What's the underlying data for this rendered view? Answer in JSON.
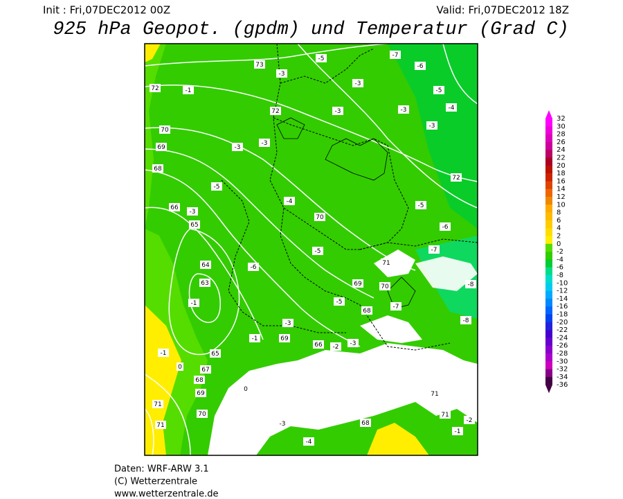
{
  "header": {
    "init": "Init : Fri,07DEC2012 00Z",
    "valid": "Valid: Fri,07DEC2012 18Z",
    "title": "925 hPa Geopot. (gpdm) und Temperatur (Grad C)"
  },
  "colorbar": {
    "labels": [
      32,
      30,
      28,
      26,
      24,
      22,
      20,
      18,
      16,
      14,
      12,
      10,
      8,
      6,
      4,
      2,
      0,
      -2,
      -4,
      -6,
      -8,
      -10,
      -12,
      -14,
      -16,
      -18,
      -20,
      -22,
      -24,
      -26,
      -28,
      -30,
      -32,
      -34,
      -36
    ],
    "colors": [
      "#ff00ff",
      "#ee00dd",
      "#dd00bb",
      "#cc0099",
      "#bb0066",
      "#aa0022",
      "#bb1100",
      "#cc2200",
      "#dd4400",
      "#ee6600",
      "#ee8800",
      "#ffaa00",
      "#ffbb00",
      "#ffcc00",
      "#ffdd00",
      "#ffee00",
      "#55dd00",
      "#33cc00",
      "#00cc33",
      "#00dd88",
      "#00ddcc",
      "#00ccee",
      "#00aaff",
      "#0088ff",
      "#0066ff",
      "#0044ee",
      "#2222dd",
      "#4400cc",
      "#6600cc",
      "#8800cc",
      "#aa00cc",
      "#cc00bb",
      "#880088",
      "#440044"
    ]
  },
  "map": {
    "contour_labels": [
      "73",
      "72",
      "72",
      "70",
      "69",
      "68",
      "66",
      "65",
      "64",
      "63",
      "-1",
      "72",
      "70",
      "69",
      "70",
      "68",
      "71",
      "65",
      "67",
      "68",
      "69",
      "70",
      "71",
      "71",
      "-1",
      "-3",
      "-5",
      "-7",
      "-6",
      "-3",
      "-3",
      "-3",
      "-5",
      "-4",
      "-3",
      "-3",
      "-3",
      "-5",
      "-6",
      "-5",
      "-3",
      "-4",
      "-5",
      "-6",
      "-5",
      "-7",
      "-8",
      "-8",
      "-7",
      "-3",
      "-1",
      "66",
      "68",
      "-3",
      "-4",
      "-1",
      "-2",
      "71",
      "71",
      "-1",
      "0",
      "0",
      "-2",
      "-3",
      "69"
    ]
  },
  "footer": {
    "data": "Daten: WRF-ARW 3.1",
    "copyright": "(C) Wetterzentrale",
    "url": "www.wetterzentrale.de"
  }
}
